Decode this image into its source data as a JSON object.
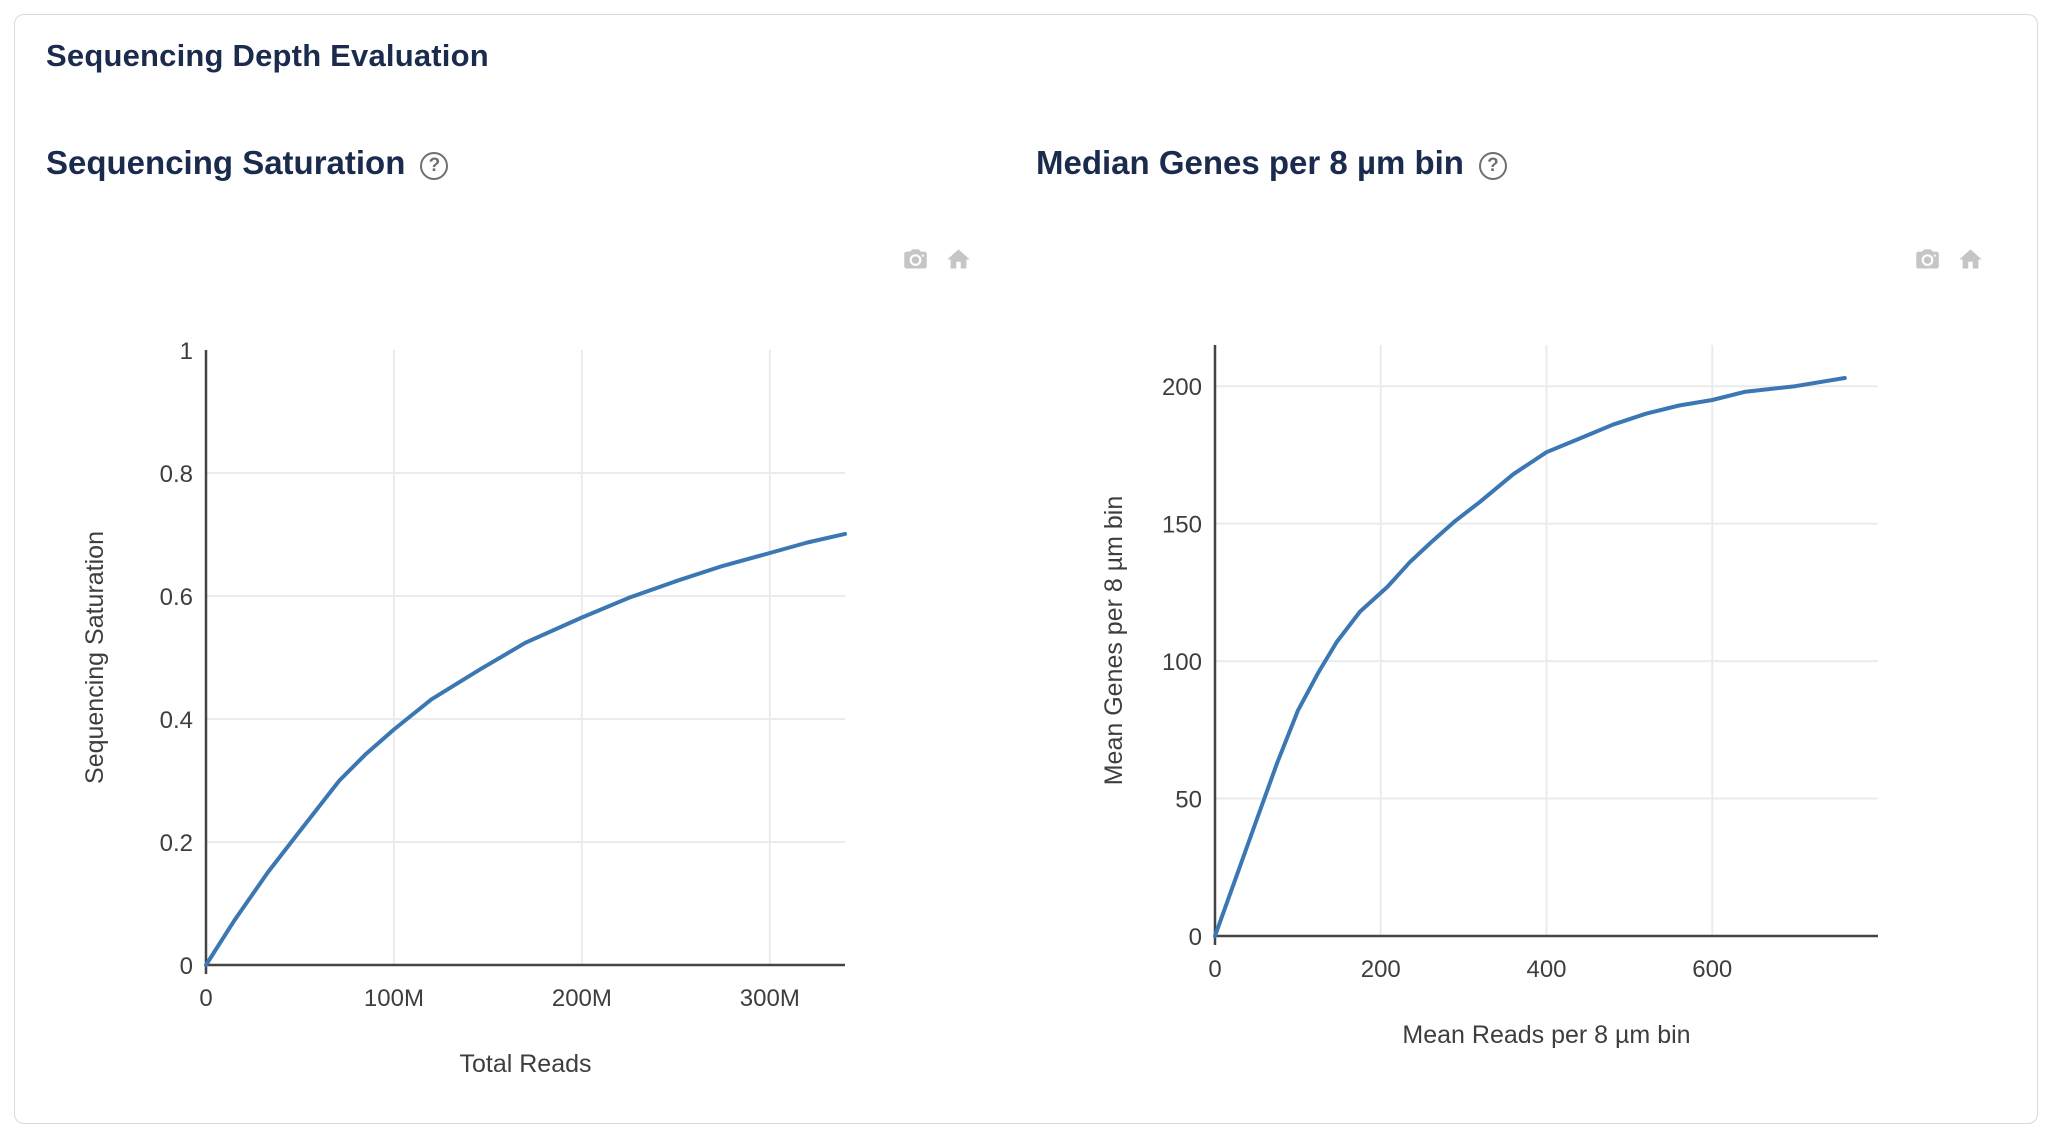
{
  "header": {
    "title": "Sequencing Depth Evaluation"
  },
  "icons": {
    "help_glyph": "?",
    "camera": "camera-snapshot",
    "home": "reset-home"
  },
  "colors": {
    "title_navy": "#1a2b4e",
    "line_blue": "#3b77b2",
    "axis_gray": "#444444",
    "tick_gray": "#3e3e3e",
    "grid_gray": "#ebebeb",
    "icon_gray": "#c5c5c5"
  },
  "chart_data": [
    {
      "type": "line",
      "title": "Sequencing Saturation",
      "xlabel": "Total Reads",
      "ylabel": "Sequencing Saturation",
      "xlim": [
        0,
        340000000
      ],
      "ylim": [
        0,
        1
      ],
      "grid": true,
      "legend": "none",
      "series": [
        {
          "name": "Sequencing Saturation",
          "color": "#3b77b2"
        }
      ],
      "xticks": [
        {
          "v": 0,
          "label": "0"
        },
        {
          "v": 100000000,
          "label": "100M"
        },
        {
          "v": 200000000,
          "label": "200M"
        },
        {
          "v": 300000000,
          "label": "300M"
        }
      ],
      "yticks": [
        {
          "v": 0,
          "label": "0"
        },
        {
          "v": 0.2,
          "label": "0.2"
        },
        {
          "v": 0.4,
          "label": "0.4"
        },
        {
          "v": 0.6,
          "label": "0.6"
        },
        {
          "v": 0.8,
          "label": "0.8"
        },
        {
          "v": 1,
          "label": "1"
        }
      ],
      "points": [
        [
          0,
          0
        ],
        [
          15000000,
          0.072
        ],
        [
          33000000,
          0.151
        ],
        [
          50000000,
          0.218
        ],
        [
          71000000,
          0.3
        ],
        [
          85000000,
          0.343
        ],
        [
          100000000,
          0.383
        ],
        [
          120000000,
          0.432
        ],
        [
          146000000,
          0.481
        ],
        [
          170000000,
          0.524
        ],
        [
          200000000,
          0.565
        ],
        [
          225000000,
          0.597
        ],
        [
          250000000,
          0.624
        ],
        [
          275000000,
          0.649
        ],
        [
          300000000,
          0.67
        ],
        [
          320000000,
          0.687
        ],
        [
          340000000,
          0.701
        ]
      ]
    },
    {
      "type": "line",
      "title": "Median Genes per 8 µm bin",
      "xlabel": "Mean Reads per 8 µm bin",
      "ylabel": "Mean Genes per 8 µm bin",
      "xlim": [
        0,
        800
      ],
      "ylim": [
        0,
        215
      ],
      "grid": true,
      "legend": "none",
      "series": [
        {
          "name": "Mean Genes per 8 µm bin",
          "color": "#3b77b2"
        }
      ],
      "xticks": [
        {
          "v": 0,
          "label": "0"
        },
        {
          "v": 200,
          "label": "200"
        },
        {
          "v": 400,
          "label": "400"
        },
        {
          "v": 600,
          "label": "600"
        }
      ],
      "yticks": [
        {
          "v": 0,
          "label": "0"
        },
        {
          "v": 50,
          "label": "50"
        },
        {
          "v": 100,
          "label": "100"
        },
        {
          "v": 150,
          "label": "150"
        },
        {
          "v": 200,
          "label": "200"
        }
      ],
      "points": [
        [
          0,
          0
        ],
        [
          25,
          21
        ],
        [
          50,
          42
        ],
        [
          75,
          63
        ],
        [
          100,
          82
        ],
        [
          125,
          96
        ],
        [
          147,
          107
        ],
        [
          175,
          118
        ],
        [
          208,
          127
        ],
        [
          235,
          136
        ],
        [
          260,
          143
        ],
        [
          290,
          151
        ],
        [
          320,
          158
        ],
        [
          360,
          168
        ],
        [
          400,
          176
        ],
        [
          440,
          181
        ],
        [
          480,
          186
        ],
        [
          520,
          190
        ],
        [
          560,
          193
        ],
        [
          600,
          195
        ],
        [
          640,
          198
        ],
        [
          700,
          200
        ],
        [
          760,
          203
        ]
      ]
    }
  ]
}
